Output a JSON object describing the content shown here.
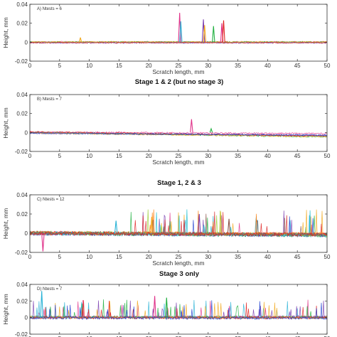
{
  "figure": {
    "stage_titles": [
      "",
      "Stage 1 & 2 (but no stage 3)",
      "Stage 1, 2 & 3",
      "Stage 3 only"
    ]
  },
  "chart_data": [
    {
      "type": "line",
      "panel_label": "A) Ntests = 6",
      "xlabel": "Scratch length, mm",
      "ylabel": "Height, mm",
      "xlim": [
        0,
        50
      ],
      "ylim": [
        -0.02,
        0.04
      ],
      "xticks": [
        0,
        5,
        10,
        15,
        20,
        25,
        30,
        35,
        40,
        45,
        50
      ],
      "yticks": [
        -0.02,
        0,
        0.02,
        0.04
      ],
      "n_series": 6,
      "noise": 0.0006,
      "drift": 0,
      "spikes": [
        {
          "x": 8.5,
          "y": 0.005,
          "series": 4
        },
        {
          "x": 25.2,
          "y": 0.031,
          "series": 0
        },
        {
          "x": 25.4,
          "y": 0.022,
          "series": 1
        },
        {
          "x": 29.2,
          "y": 0.024,
          "series": 2
        },
        {
          "x": 29.4,
          "y": 0.018,
          "series": 4
        },
        {
          "x": 30.9,
          "y": 0.017,
          "series": 3
        },
        {
          "x": 32.3,
          "y": 0.02,
          "series": 0
        },
        {
          "x": 32.6,
          "y": 0.023,
          "series": 5
        }
      ],
      "colors": [
        "#e0338a",
        "#2ab3d6",
        "#7b3fb0",
        "#20b040",
        "#f2a81d",
        "#e02020",
        "#2040d0"
      ]
    },
    {
      "type": "line",
      "panel_label": "B) Ntests = 7",
      "xlabel": "Scratch length, mm",
      "ylabel": "Height, mm",
      "xlim": [
        0,
        50
      ],
      "ylim": [
        -0.02,
        0.04
      ],
      "xticks": [
        0,
        5,
        10,
        15,
        20,
        25,
        30,
        35,
        40,
        45,
        50
      ],
      "yticks": [
        -0.02,
        0,
        0.02,
        0.04
      ],
      "n_series": 7,
      "noise": 0.0008,
      "drift": -0.004,
      "spikes": [
        {
          "x": 27.2,
          "y": 0.014,
          "series": 0
        },
        {
          "x": 30.5,
          "y": 0.004,
          "series": 3
        }
      ],
      "colors": [
        "#e0338a",
        "#2ab3d6",
        "#7b3fb0",
        "#20b040",
        "#f2a81d",
        "#e02020",
        "#2040d0"
      ]
    },
    {
      "type": "line",
      "panel_label": "C) Ntests = 12",
      "xlabel": "Scratch length, mm",
      "ylabel": "Height, mm",
      "xlim": [
        0,
        50
      ],
      "ylim": [
        -0.02,
        0.04
      ],
      "xticks": [
        0,
        5,
        10,
        15,
        20,
        25,
        30,
        35,
        40,
        45,
        50
      ],
      "yticks": [
        -0.02,
        0,
        0.02,
        0.04
      ],
      "n_series": 12,
      "noise": 0.0018,
      "drift": -0.002,
      "spike_start": 17,
      "spike_rate": 0.55,
      "spike_max": 0.025,
      "spikes": [
        {
          "x": 2.2,
          "y": -0.019,
          "series": 0
        },
        {
          "x": 14.5,
          "y": 0.013,
          "series": 1
        },
        {
          "x": 20.5,
          "y": 0.017,
          "series": 4
        },
        {
          "x": 28.5,
          "y": 0.02,
          "series": 2
        },
        {
          "x": 33.5,
          "y": 0.015,
          "series": 10
        }
      ],
      "colors": [
        "#e0338a",
        "#2ab3d6",
        "#7b3fb0",
        "#20b040",
        "#f2a81d",
        "#e02020",
        "#2040d0",
        "#9acd32",
        "#ff7f0e",
        "#17becf",
        "#8c564b",
        "#d62728"
      ]
    },
    {
      "type": "line",
      "panel_label": "D) Ntests = 7",
      "xlabel": "Scratch length, mm",
      "ylabel": "Height, mm",
      "xlim": [
        0,
        50
      ],
      "ylim": [
        -0.02,
        0.04
      ],
      "xticks": [
        0,
        5,
        10,
        15,
        20,
        25,
        30,
        35,
        40,
        45,
        50
      ],
      "yticks": [
        -0.02,
        0,
        0.02,
        0.04
      ],
      "n_series": 7,
      "noise": 0.0015,
      "drift": 0,
      "spike_start": 0.5,
      "spike_rate": 0.6,
      "spike_max": 0.022,
      "spikes": [
        {
          "x": 2.0,
          "y": 0.032,
          "series": 1
        },
        {
          "x": 21.0,
          "y": 0.026,
          "series": 0
        },
        {
          "x": 23.0,
          "y": 0.024,
          "series": 3
        }
      ],
      "colors": [
        "#e0338a",
        "#2ab3d6",
        "#7b3fb0",
        "#20b040",
        "#f2a81d",
        "#e02020",
        "#2040d0"
      ]
    }
  ]
}
